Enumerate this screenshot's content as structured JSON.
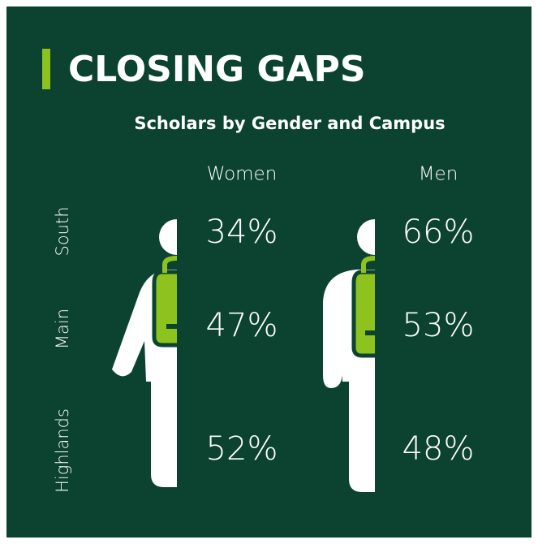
{
  "chart_data": {
    "type": "pictograph",
    "title": "CLOSING GAPS",
    "subtitle": "Scholars by Gender and Campus",
    "categories": [
      "South",
      "Main",
      "Highlands"
    ],
    "series": [
      {
        "name": "Women",
        "color": "#ffffff",
        "values": [
          34,
          47,
          52
        ],
        "value_labels": [
          "34%",
          "47%",
          "52%"
        ]
      },
      {
        "name": "Men",
        "color": "#ffffff",
        "values": [
          66,
          53,
          48
        ],
        "value_labels": [
          "66%",
          "53%",
          "48%"
        ]
      }
    ]
  }
}
